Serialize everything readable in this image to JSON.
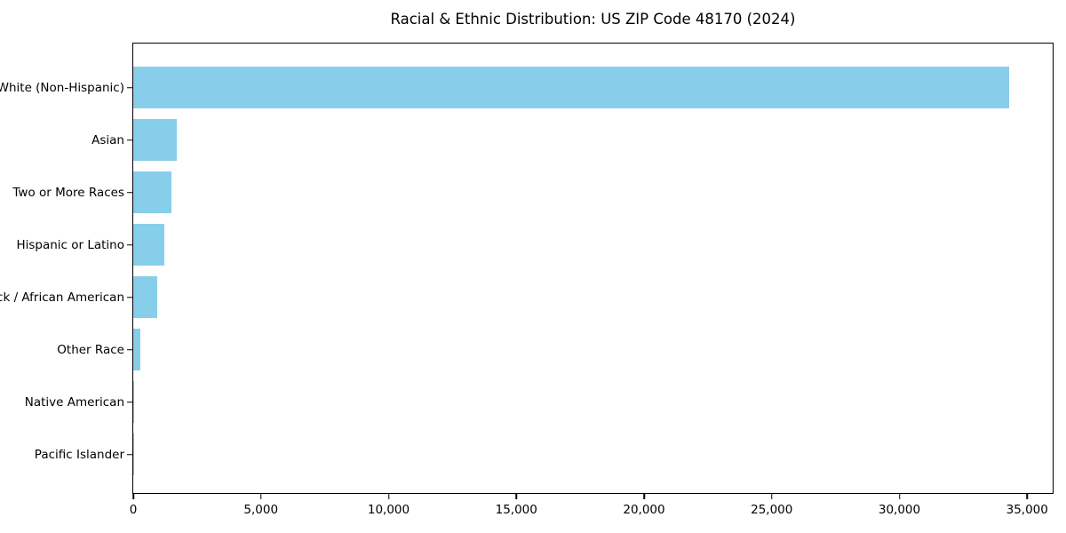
{
  "page": {
    "background_color": "#ffffff"
  },
  "chart_data": {
    "type": "bar",
    "orientation": "horizontal",
    "title": "Racial & Ethnic Distribution: US ZIP Code 48170 (2024)",
    "categories": [
      "White (Non-Hispanic)",
      "Asian",
      "Two or More Races",
      "Hispanic or Latino",
      "Black / African American",
      "Other Race",
      "Native American",
      "Pacific Islander"
    ],
    "values": [
      34300,
      1700,
      1500,
      1230,
      930,
      290,
      50,
      10
    ],
    "xlabel": "",
    "ylabel": "",
    "xlim": [
      0,
      36000
    ],
    "x_ticks": [
      0,
      5000,
      10000,
      15000,
      20000,
      25000,
      30000,
      35000
    ],
    "x_tick_labels": [
      "0",
      "5,000",
      "10,000",
      "15,000",
      "20,000",
      "25,000",
      "30,000",
      "35,000"
    ],
    "bar_color": "#87CEEB",
    "axis_color": "#000000",
    "text_color": "#000000",
    "grid": false,
    "legend_position": "none"
  }
}
